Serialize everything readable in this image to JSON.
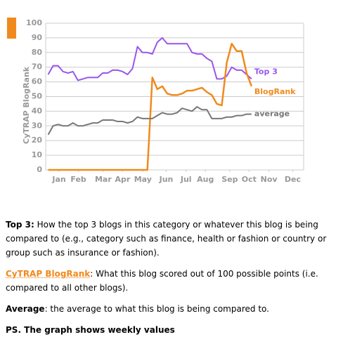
{
  "chart_data": {
    "type": "line",
    "ylabel": "CyTRAP BlogRank",
    "x": [
      0,
      1,
      2,
      3,
      4,
      5,
      6,
      7,
      8,
      9,
      10,
      11,
      12,
      13,
      14,
      15,
      16,
      17,
      18,
      19,
      20,
      21,
      22,
      23,
      24,
      25,
      26,
      27,
      28,
      29,
      30,
      31,
      32,
      33,
      34,
      35,
      36,
      37,
      38,
      39,
      40,
      41
    ],
    "series": [
      {
        "name": "Top 3",
        "color": "#9955ee",
        "values": [
          65,
          71,
          71,
          67,
          66,
          67,
          61,
          62,
          63,
          63,
          63,
          66,
          66,
          68,
          68,
          67,
          65,
          69,
          84,
          80,
          80,
          79,
          87,
          90,
          86,
          86,
          86,
          86,
          86,
          80,
          79,
          79,
          76,
          74,
          62,
          62,
          64,
          70,
          68,
          68,
          65,
          62
        ]
      },
      {
        "name": "BlogRank",
        "color": "#f08a1e",
        "values": [
          0,
          0,
          0,
          0,
          0,
          0,
          0,
          0,
          0,
          0,
          0,
          0,
          0,
          0,
          0,
          0,
          0,
          0,
          0,
          0,
          0,
          63,
          55,
          57,
          52,
          51,
          51,
          52,
          54,
          54,
          55,
          56,
          53,
          51,
          45,
          44,
          73,
          86,
          81,
          81,
          66,
          57
        ]
      },
      {
        "name": "average",
        "color": "#777777",
        "values": [
          24,
          30,
          31,
          30,
          30,
          32,
          30,
          30,
          31,
          32,
          32,
          34,
          34,
          34,
          33,
          33,
          32,
          33,
          36,
          35,
          35,
          35,
          37,
          39,
          38,
          38,
          39,
          42,
          41,
          40,
          43,
          41,
          41,
          35,
          35,
          35,
          36,
          36,
          37,
          37,
          38,
          38
        ]
      }
    ],
    "xlim": [
      -0.5,
      51.5
    ],
    "xticks": [
      {
        "value": 2.2,
        "label": "Jan"
      },
      {
        "value": 6.1,
        "label": "Feb"
      },
      {
        "value": 11.1,
        "label": "Mar"
      },
      {
        "value": 15,
        "label": "Apr"
      },
      {
        "value": 19.1,
        "label": "May"
      },
      {
        "value": 23.8,
        "label": "Jun"
      },
      {
        "value": 27.8,
        "label": "Jul"
      },
      {
        "value": 31.7,
        "label": "Aug"
      },
      {
        "value": 36.6,
        "label": "Sep"
      },
      {
        "value": 40.5,
        "label": "Oct"
      },
      {
        "value": 44.5,
        "label": "Nov"
      },
      {
        "value": 49.3,
        "label": "Dec"
      }
    ],
    "ylim": [
      0,
      100
    ],
    "yticks": [
      0,
      10,
      20,
      30,
      40,
      50,
      60,
      70,
      80,
      90,
      100
    ],
    "grid": true
  },
  "notes": [
    {
      "lead": "Top 3:",
      "text": " How the top 3 blogs in this category or whatever this blog is being compared to (e.g., category such as finance, health or fashion or country or group such as insurance or fashion)."
    },
    {
      "lead": "CyTRAP BlogRank",
      "text": ": What this blog scored out of 100 possible points (i.e. compared to all other blogs)."
    },
    {
      "lead": "Average",
      "text": ": the average to what this blog is being compared to."
    },
    {
      "lead": "PS.",
      "text": " The graph shows weekly values"
    }
  ]
}
